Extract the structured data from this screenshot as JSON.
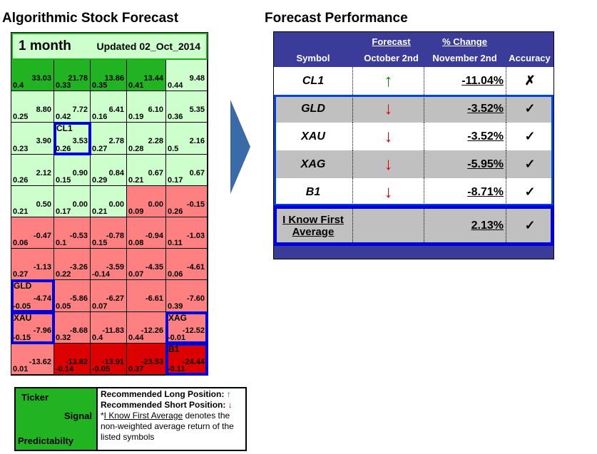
{
  "left_title": "Algorithmic Stock Forecast",
  "right_title": "Forecast Performance",
  "grid_header": {
    "period": "1 month",
    "updated": "Updated 02_Oct_2014"
  },
  "grid": [
    [
      [
        "33.03",
        "0.4",
        "dg",
        ""
      ],
      [
        "21.78",
        "0.33",
        "dg",
        ""
      ],
      [
        "13.86",
        "0.35",
        "dg",
        ""
      ],
      [
        "13.44",
        "0.41",
        "dg",
        ""
      ],
      [
        "9.48",
        "0.44",
        "lg",
        ""
      ]
    ],
    [
      [
        "8.80",
        "0.25",
        "lg",
        ""
      ],
      [
        "7.72",
        "0.42",
        "lg",
        ""
      ],
      [
        "6.41",
        "0.16",
        "lg",
        ""
      ],
      [
        "6.10",
        "0.19",
        "lg",
        ""
      ],
      [
        "5.35",
        "0.36",
        "lg",
        ""
      ]
    ],
    [
      [
        "3.90",
        "0.23",
        "lg",
        ""
      ],
      [
        "3.53",
        "0.26",
        "lg",
        "CL1"
      ],
      [
        "2.78",
        "0.27",
        "lg",
        ""
      ],
      [
        "2.28",
        "0.28",
        "lg",
        ""
      ],
      [
        "2.16",
        "0.5",
        "lg",
        ""
      ]
    ],
    [
      [
        "2.12",
        "0.26",
        "lg",
        ""
      ],
      [
        "0.90",
        "0.15",
        "lg",
        ""
      ],
      [
        "0.84",
        "0.29",
        "lg",
        ""
      ],
      [
        "0.67",
        "0.21",
        "lg",
        ""
      ],
      [
        "0.67",
        "0.17",
        "lg",
        ""
      ]
    ],
    [
      [
        "0.50",
        "0.21",
        "lg",
        ""
      ],
      [
        "0.00",
        "0.17",
        "lg",
        ""
      ],
      [
        "0.00",
        "0.21",
        "lg",
        ""
      ],
      [
        "0.00",
        "0.09",
        "pk",
        ""
      ],
      [
        "-0.15",
        "0.26",
        "pk",
        ""
      ]
    ],
    [
      [
        "-0.47",
        "0.06",
        "pk",
        ""
      ],
      [
        "-0.53",
        "0.1",
        "pk",
        ""
      ],
      [
        "-0.78",
        "0.15",
        "pk",
        ""
      ],
      [
        "-0.94",
        "0.08",
        "pk",
        ""
      ],
      [
        "-1.03",
        "0.11",
        "pk",
        ""
      ]
    ],
    [
      [
        "-1.13",
        "0.27",
        "pk",
        ""
      ],
      [
        "-3.26",
        "0.22",
        "pk",
        ""
      ],
      [
        "-3.59",
        "-0.14",
        "pk",
        ""
      ],
      [
        "-4.35",
        "0.07",
        "pk",
        ""
      ],
      [
        "-4.61",
        "0.06",
        "pk",
        ""
      ]
    ],
    [
      [
        "-4.74",
        "-0.05",
        "pk",
        "GLD"
      ],
      [
        "-5.86",
        "0.05",
        "pk",
        ""
      ],
      [
        "-6.27",
        "0.07",
        "pk",
        ""
      ],
      [
        "-6.61",
        "",
        "pk",
        ""
      ],
      [
        "-7.60",
        "0.39",
        "pk",
        ""
      ]
    ],
    [
      [
        "-7.96",
        "-0.15",
        "pk",
        "XAU"
      ],
      [
        "-8.68",
        "0.32",
        "pk",
        ""
      ],
      [
        "-11.83",
        "0.4",
        "pk",
        ""
      ],
      [
        "-12.26",
        "0.44",
        "pk",
        ""
      ],
      [
        "-12.52",
        "-0.01",
        "pk",
        "XAG"
      ]
    ],
    [
      [
        "-13.62",
        "0.01",
        "pk",
        ""
      ],
      [
        "-13.82",
        "-0.14",
        "dr",
        ""
      ],
      [
        "-13.91",
        "-0.05",
        "dr",
        ""
      ],
      [
        "-23.53",
        "0.37",
        "dr",
        ""
      ],
      [
        "-24.44",
        "-0.11",
        "dr",
        "B1"
      ]
    ]
  ],
  "legend": {
    "ticker": "Ticker",
    "signal": "Signal",
    "predictability": "Predictabilty",
    "long": "Recommended Long Position:",
    "short": "Recommended Short Position:",
    "star": "*",
    "avg_link": "I Know First Average",
    "avg_text": " denotes the non-weighted average return of the listed symbols",
    "up_arrow": "↑",
    "down_arrow": "↓"
  },
  "performance": {
    "headers": {
      "forecast": "Forecast",
      "change": "% Change",
      "symbol": "Symbol",
      "date1": "October 2nd",
      "date2": "November 2nd",
      "accuracy": "Accuracy"
    },
    "rows": [
      {
        "symbol": "CL1",
        "arrow": "↑",
        "dir": "up",
        "change": "-11.04%",
        "acc": "✗"
      },
      {
        "symbol": "GLD",
        "arrow": "↓",
        "dir": "dn",
        "change": "-3.52%",
        "acc": "✓"
      },
      {
        "symbol": "XAU",
        "arrow": "↓",
        "dir": "dn",
        "change": "-3.52%",
        "acc": "✓"
      },
      {
        "symbol": "XAG",
        "arrow": "↓",
        "dir": "dn",
        "change": "-5.95%",
        "acc": "✓"
      },
      {
        "symbol": "B1",
        "arrow": "↓",
        "dir": "dn",
        "change": "-8.71%",
        "acc": "✓"
      }
    ],
    "average": {
      "label1": "I Know First",
      "label2": "Average",
      "change": "2.13%",
      "acc": "✓"
    }
  },
  "colors": {
    "dark_green": "#22b322",
    "light_green": "#ccffcc",
    "pink": "#ff8080",
    "dark_red": "#dd0000",
    "highlight": "#0000dd",
    "header": "#3b3b99"
  }
}
